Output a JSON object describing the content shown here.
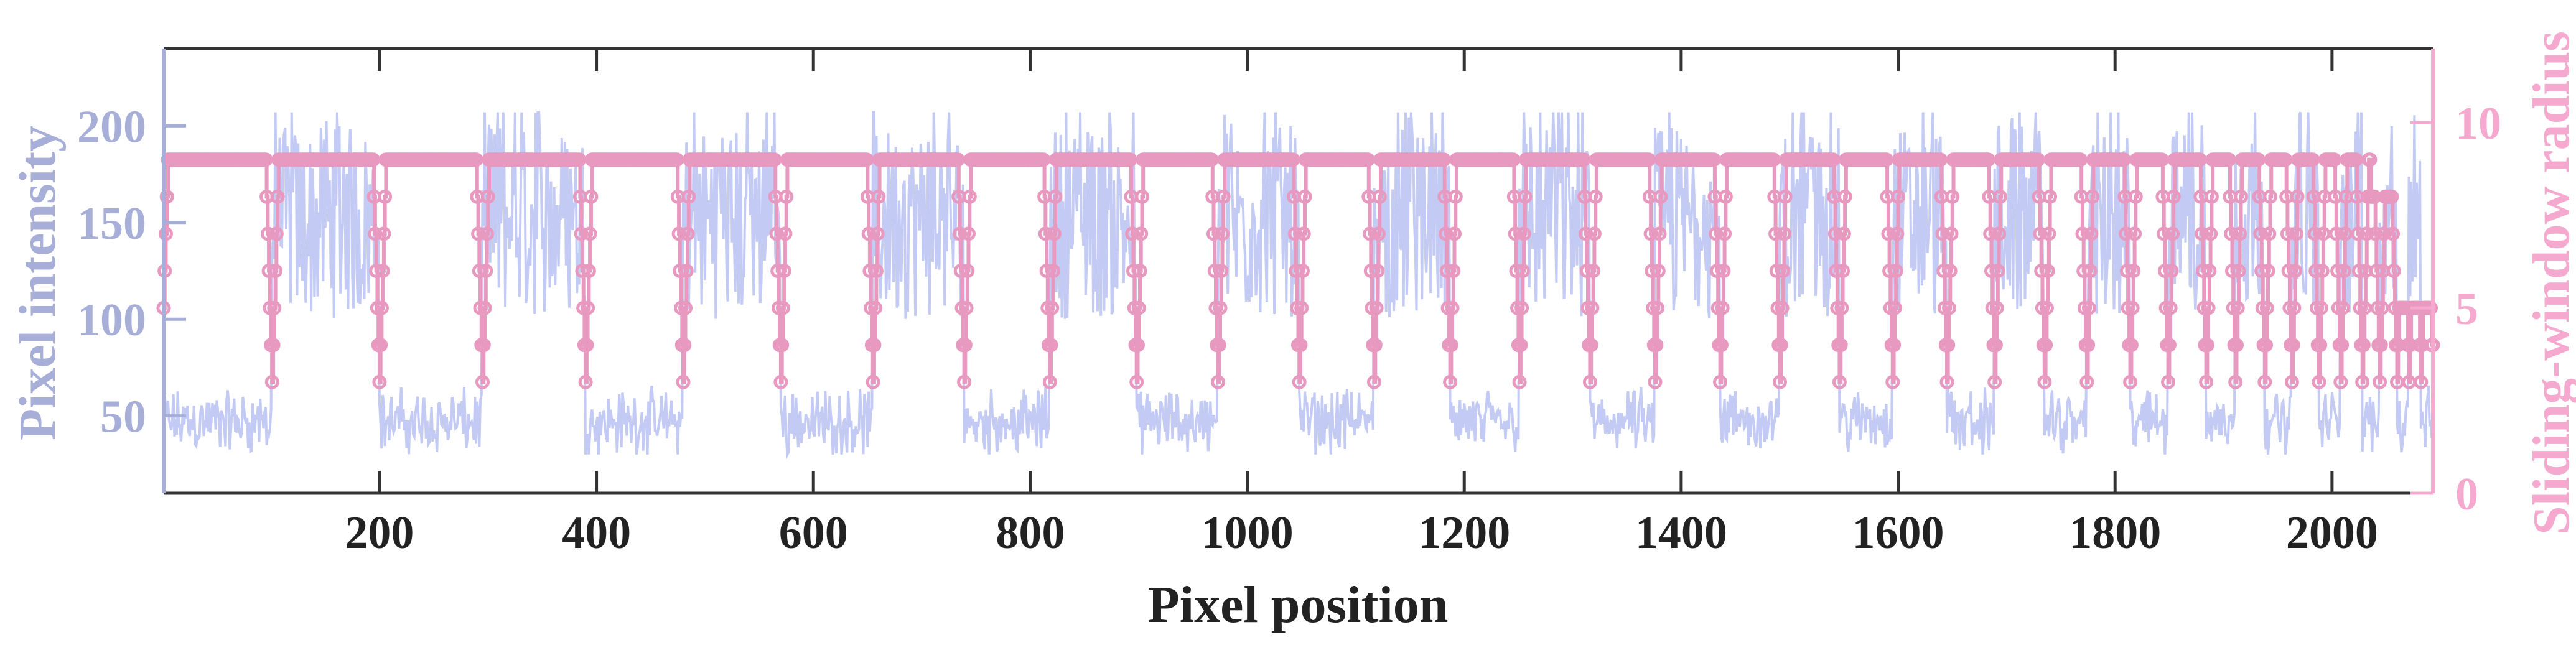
{
  "figure": {
    "x_axis_label": "Pixel position",
    "left_axis_label": "Pixel intensity",
    "right_axis_label": "Sliding-window radius"
  },
  "colors": {
    "intensity_line": "#c3cbf4",
    "left_axis": "#a7afd8",
    "radius_line": "#e899c0",
    "right_axis": "#f6a9cf",
    "frame": "#333333"
  },
  "chart_data": {
    "type": "line",
    "title": "",
    "xlabel": "Pixel position",
    "ylabel": "Pixel intensity",
    "ylabel_right": "Sliding-window radius",
    "xlim": [
      1,
      2093
    ],
    "ylim": [
      10,
      240
    ],
    "ylim_right": [
      0,
      12
    ],
    "x_ticks": [
      200,
      400,
      600,
      800,
      1000,
      1200,
      1400,
      1600,
      1800,
      2000
    ],
    "y_ticks": [
      50,
      100,
      150,
      200
    ],
    "y_ticks_right": [
      0,
      5,
      10
    ],
    "grid": false,
    "legend": "none",
    "series": [
      {
        "name": "Pixel intensity",
        "axis": "left",
        "style": "line",
        "description": "Noisy square-wave signal alternating between dark and bright regions",
        "low_level_range": [
          30,
          68
        ],
        "high_level_range": [
          88,
          207
        ],
        "segments": [
          {
            "start": 1,
            "end": 101,
            "level": "low"
          },
          {
            "start": 101,
            "end": 200,
            "level": "high"
          },
          {
            "start": 200,
            "end": 295,
            "level": "low"
          },
          {
            "start": 295,
            "end": 390,
            "level": "high"
          },
          {
            "start": 390,
            "end": 480,
            "level": "low"
          },
          {
            "start": 480,
            "end": 570,
            "level": "high"
          },
          {
            "start": 570,
            "end": 655,
            "level": "low"
          },
          {
            "start": 655,
            "end": 739,
            "level": "high"
          },
          {
            "start": 739,
            "end": 818,
            "level": "low"
          },
          {
            "start": 818,
            "end": 898,
            "level": "high"
          },
          {
            "start": 898,
            "end": 973,
            "level": "low"
          },
          {
            "start": 973,
            "end": 1048,
            "level": "high"
          },
          {
            "start": 1048,
            "end": 1117,
            "level": "low"
          },
          {
            "start": 1117,
            "end": 1187,
            "level": "high"
          },
          {
            "start": 1187,
            "end": 1251,
            "level": "low"
          },
          {
            "start": 1251,
            "end": 1316,
            "level": "high"
          },
          {
            "start": 1316,
            "end": 1376,
            "level": "low"
          },
          {
            "start": 1376,
            "end": 1436,
            "level": "high"
          },
          {
            "start": 1436,
            "end": 1491,
            "level": "low"
          },
          {
            "start": 1491,
            "end": 1546,
            "level": "high"
          },
          {
            "start": 1546,
            "end": 1595,
            "level": "low"
          },
          {
            "start": 1595,
            "end": 1645,
            "level": "high"
          },
          {
            "start": 1645,
            "end": 1689,
            "level": "low"
          },
          {
            "start": 1689,
            "end": 1735,
            "level": "high"
          },
          {
            "start": 1735,
            "end": 1774,
            "level": "low"
          },
          {
            "start": 1774,
            "end": 1814,
            "level": "high"
          },
          {
            "start": 1814,
            "end": 1849,
            "level": "low"
          },
          {
            "start": 1849,
            "end": 1884,
            "level": "high"
          },
          {
            "start": 1884,
            "end": 1911,
            "level": "low"
          },
          {
            "start": 1911,
            "end": 1938,
            "level": "high"
          },
          {
            "start": 1938,
            "end": 1963,
            "level": "low"
          },
          {
            "start": 1963,
            "end": 1988,
            "level": "high"
          },
          {
            "start": 1988,
            "end": 2008,
            "level": "low"
          },
          {
            "start": 2008,
            "end": 2028,
            "level": "high"
          },
          {
            "start": 2028,
            "end": 2044,
            "level": "low"
          },
          {
            "start": 2044,
            "end": 2060,
            "level": "high"
          },
          {
            "start": 2060,
            "end": 2071,
            "level": "low"
          },
          {
            "start": 2071,
            "end": 2082,
            "level": "high"
          },
          {
            "start": 2082,
            "end": 2093,
            "level": "low"
          }
        ]
      },
      {
        "name": "Sliding-window radius",
        "axis": "right",
        "style": "line with circle markers",
        "description": "Integer radius, 9 inside homogeneous regions, ramping down by 1 per pixel to 3 at each edge",
        "max_radius": 9,
        "min_radius": 3,
        "start_value": 5,
        "edge_positions": [
          101,
          200,
          295,
          390,
          480,
          570,
          655,
          739,
          818,
          898,
          973,
          1048,
          1117,
          1187,
          1251,
          1316,
          1376,
          1436,
          1491,
          1546,
          1595,
          1645,
          1689,
          1735,
          1774,
          1814,
          1849,
          1884,
          1911,
          1938,
          1963,
          1988,
          2008,
          2028,
          2044,
          2060,
          2071,
          2082,
          2093
        ],
        "reduced_peaks": [
          {
            "x": 2044,
            "value": 8
          },
          {
            "x": 2057,
            "value": 8
          }
        ],
        "tail_level": 3,
        "end_value": 4
      }
    ]
  }
}
